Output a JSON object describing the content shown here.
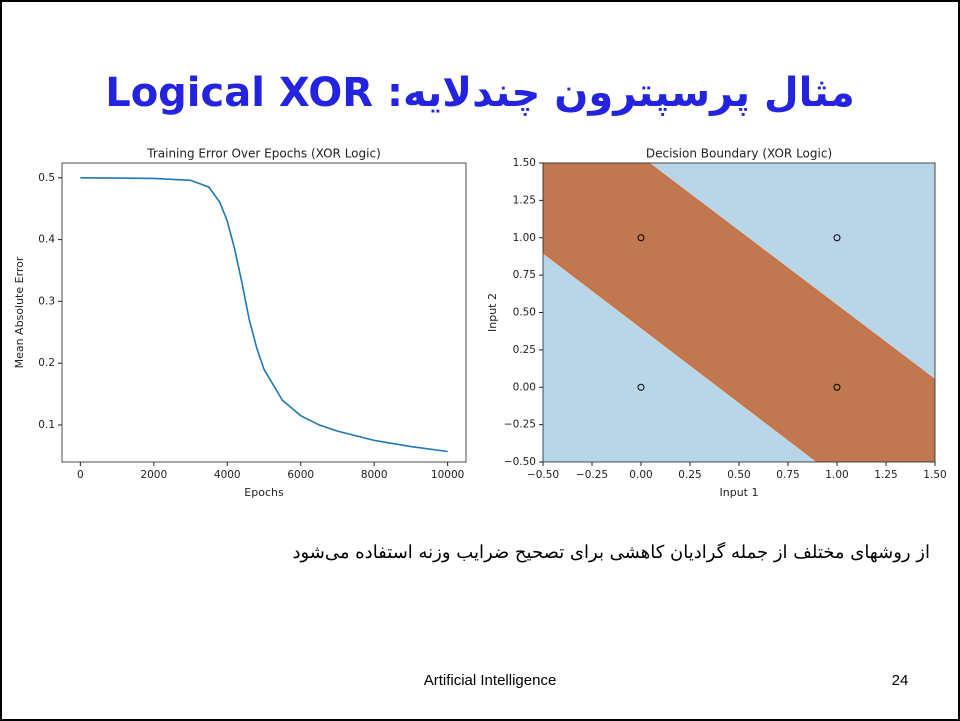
{
  "title": "مثال پرسپترون چندلایه: Logical XOR",
  "body": "از روشهای مختلف از جمله گرادیان کاهشی برای تصحیح ضرایب وزنه استفاده می‌شود",
  "footer": "Artificial Intelligence",
  "page_number": "24",
  "chart_data": [
    {
      "type": "line",
      "title": "Training Error Over Epochs (XOR Logic)",
      "x_label": "Epochs",
      "y_label": "Mean Absolute Error",
      "x": [
        0,
        2000,
        3000,
        3500,
        3800,
        4000,
        4200,
        4400,
        4600,
        4800,
        5000,
        5500,
        6000,
        6500,
        7000,
        8000,
        9000,
        10000
      ],
      "series": [
        {
          "name": "error",
          "color": "#1f77b4",
          "values": [
            0.5,
            0.499,
            0.496,
            0.485,
            0.46,
            0.43,
            0.385,
            0.33,
            0.27,
            0.225,
            0.19,
            0.14,
            0.115,
            0.1,
            0.09,
            0.075,
            0.065,
            0.057
          ]
        }
      ],
      "xlim": [
        -500,
        10500
      ],
      "ylim": [
        0.04,
        0.524
      ],
      "xticks": [
        0,
        2000,
        4000,
        6000,
        8000,
        10000
      ],
      "yticks": [
        0.1,
        0.2,
        0.3,
        0.4,
        0.5
      ]
    },
    {
      "type": "scatter",
      "title": "Decision Boundary (XOR Logic)",
      "x_label": "Input 1",
      "y_label": "Input 2",
      "x": [
        0,
        0,
        1,
        1
      ],
      "values": [
        0,
        1,
        0,
        1
      ],
      "point_colors": [
        "#b8d6e8",
        "#c07850",
        "#c07850",
        "#b8d6e8"
      ],
      "background_color": "#b8d6e8",
      "region_color": "#c07850",
      "boundaries": [
        {
          "x": [
            0.04,
            1.5
          ],
          "y": [
            1.5,
            0.05
          ]
        },
        {
          "x": [
            -0.5,
            0.9
          ],
          "y": [
            0.9,
            -0.5
          ]
        }
      ],
      "xlim": [
        -0.5,
        1.5
      ],
      "ylim": [
        -0.5,
        1.5
      ],
      "xticks": [
        {
          "value": -0.5,
          "label": "−0.50"
        },
        {
          "value": -0.25,
          "label": "−0.25"
        },
        {
          "value": 0,
          "label": "0.00"
        },
        {
          "value": 0.25,
          "label": "0.25"
        },
        {
          "value": 0.5,
          "label": "0.50"
        },
        {
          "value": 0.75,
          "label": "0.75"
        },
        {
          "value": 1,
          "label": "1.00"
        },
        {
          "value": 1.25,
          "label": "1.25"
        },
        {
          "value": 1.5,
          "label": "1.50"
        }
      ],
      "yticks": [
        {
          "value": -0.5,
          "label": "−0.50"
        },
        {
          "value": -0.25,
          "label": "−0.25"
        },
        {
          "value": 0,
          "label": "0.00"
        },
        {
          "value": 0.25,
          "label": "0.25"
        },
        {
          "value": 0.5,
          "label": "0.50"
        },
        {
          "value": 0.75,
          "label": "0.75"
        },
        {
          "value": 1,
          "label": "1.00"
        },
        {
          "value": 1.25,
          "label": "1.25"
        },
        {
          "value": 1.5,
          "label": "1.50"
        }
      ]
    }
  ]
}
